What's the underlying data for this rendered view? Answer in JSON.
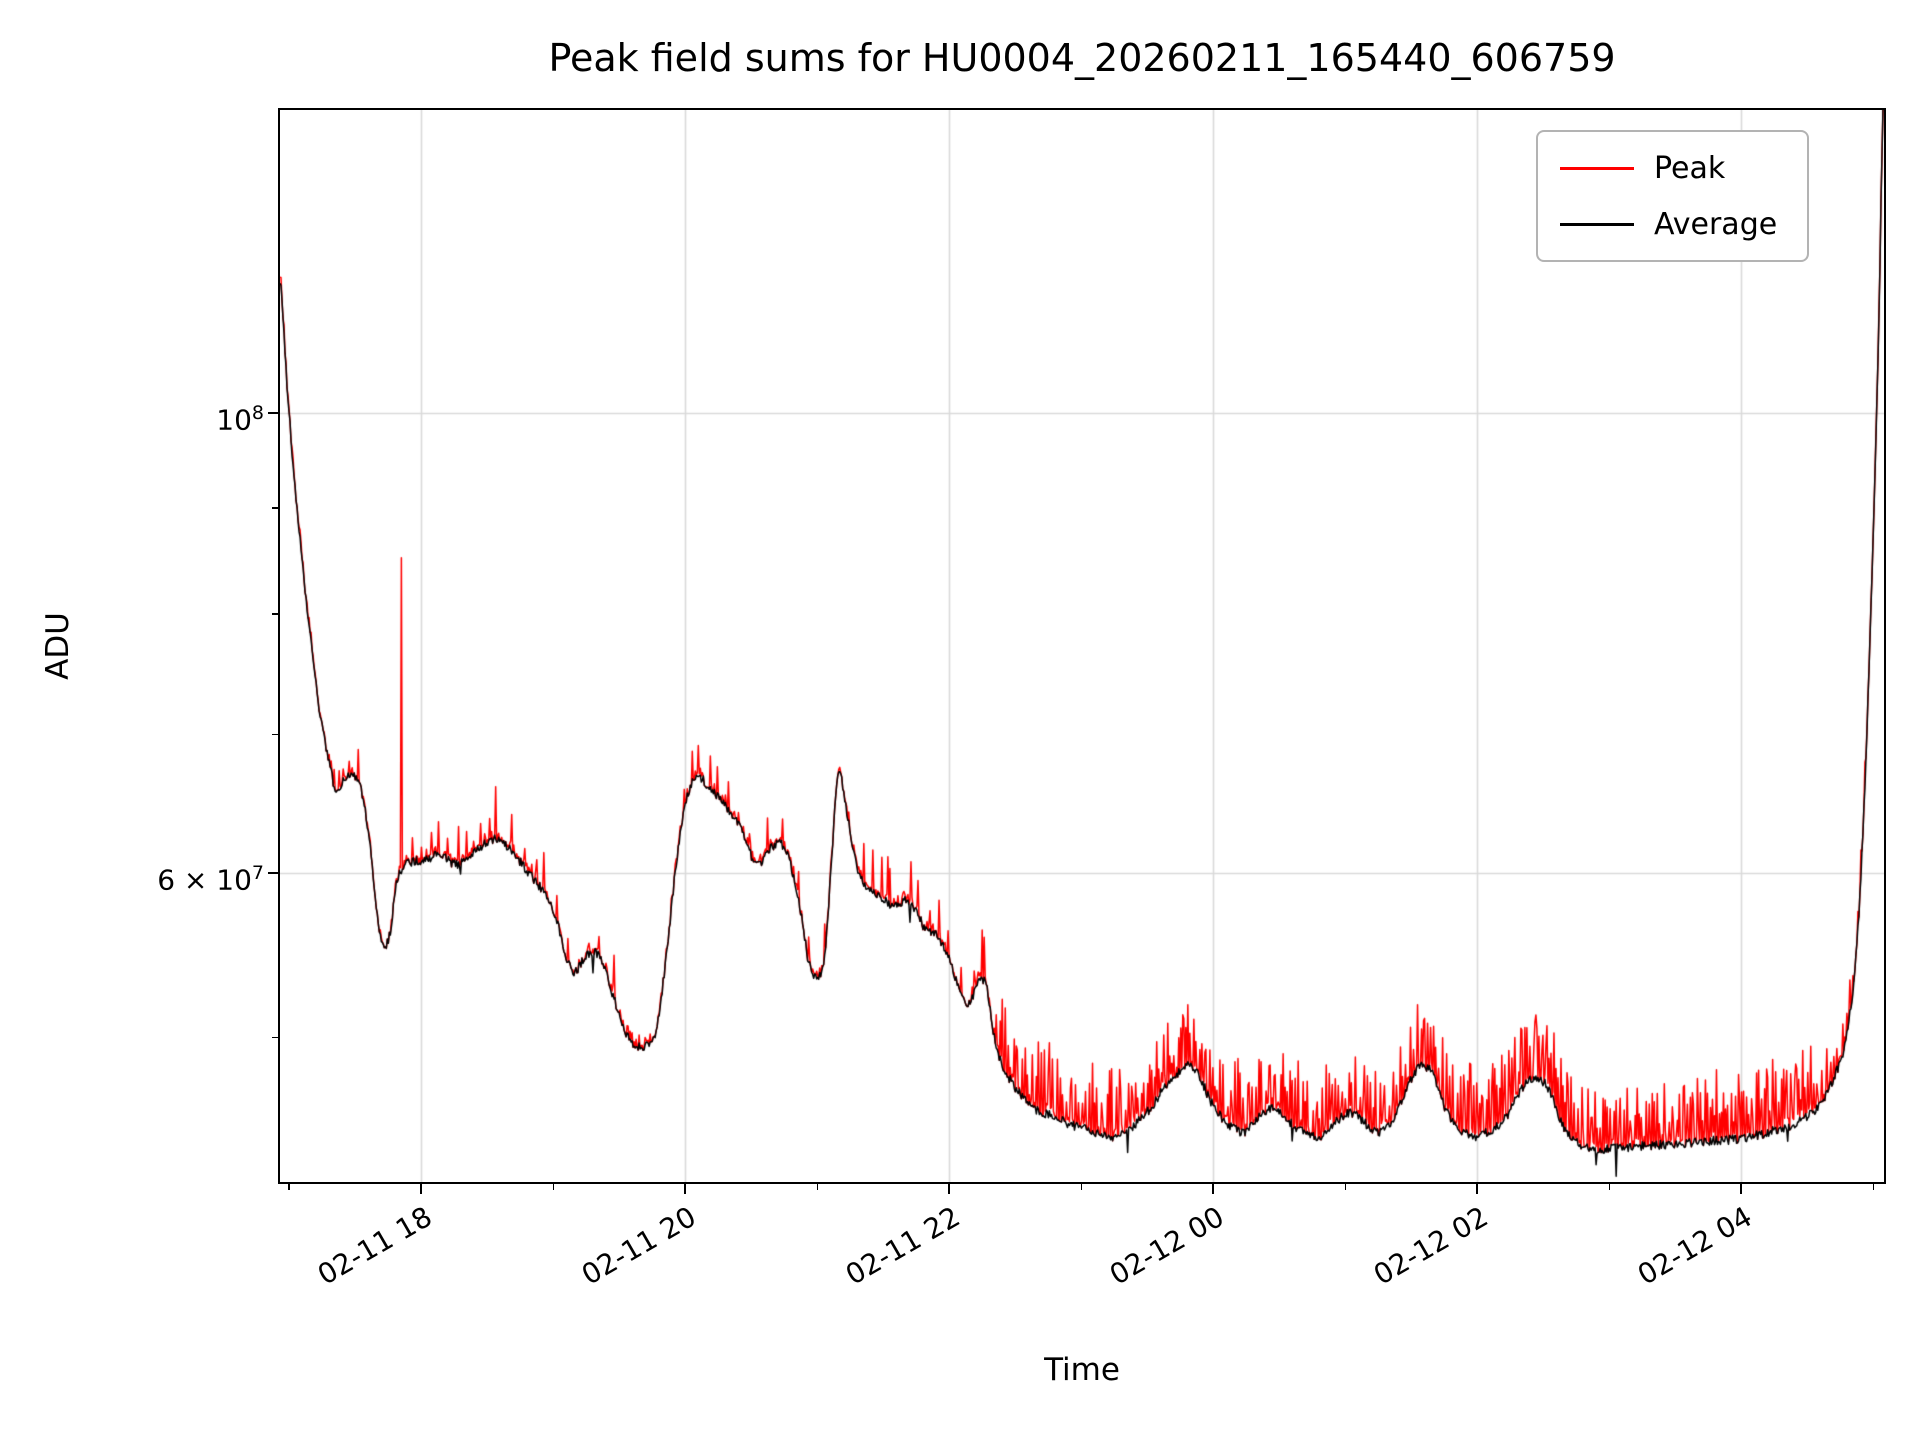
{
  "figure": {
    "background": "#ffffff"
  },
  "chart_data": {
    "type": "line",
    "title": "Peak field sums for HU0004_20260211_165440_606759",
    "xlabel": "Time",
    "ylabel": "ADU",
    "yscale": "log",
    "x_unit": "decimal hours since 2026-02-11 00:00 (values > 24 fall on 02-12)",
    "xlim": [
      16.93,
      29.08
    ],
    "ylim": [
      42600000,
      140000000
    ],
    "x_ticks": [
      {
        "value": 18,
        "label": "02-11 18"
      },
      {
        "value": 20,
        "label": "02-11 20"
      },
      {
        "value": 22,
        "label": "02-11 22"
      },
      {
        "value": 24,
        "label": "02-12 00"
      },
      {
        "value": 26,
        "label": "02-12 02"
      },
      {
        "value": 28,
        "label": "02-12 04"
      }
    ],
    "x_minor_ticks": [
      17,
      19,
      21,
      23,
      25,
      27,
      29
    ],
    "x_tick_rotation": 30,
    "y_ticks": [
      {
        "value": 100000000,
        "label": "10^8",
        "coef": "",
        "exp": "8"
      },
      {
        "value": 60000000,
        "label": "6 × 10^7",
        "coef": "6 × ",
        "exp": "7"
      }
    ],
    "y_minor_ticks": [
      50000000,
      70000000,
      80000000,
      90000000
    ],
    "grid_on": true,
    "grid_color": "#d9d9d9",
    "legend_position": "upper right",
    "series": [
      {
        "name": "Peak",
        "color": "#ff0000"
      },
      {
        "name": "Average",
        "color": "#000000"
      }
    ],
    "samples": 1600,
    "noise": {
      "amplitude": 0.005,
      "seed": 987654321
    },
    "peak_fringe": 0.02,
    "average_keypoints_1e7": [
      [
        16.93,
        11.6
      ],
      [
        16.98,
        10.4
      ],
      [
        17.03,
        9.4
      ],
      [
        17.1,
        8.45
      ],
      [
        17.17,
        7.7
      ],
      [
        17.24,
        7.12
      ],
      [
        17.3,
        6.8
      ],
      [
        17.36,
        6.56
      ],
      [
        17.42,
        6.66
      ],
      [
        17.48,
        6.7
      ],
      [
        17.54,
        6.6
      ],
      [
        17.6,
        6.28
      ],
      [
        17.66,
        5.78
      ],
      [
        17.71,
        5.55
      ],
      [
        17.76,
        5.6
      ],
      [
        17.81,
        5.92
      ],
      [
        17.87,
        6.06
      ],
      [
        17.95,
        6.08
      ],
      [
        18.05,
        6.1
      ],
      [
        18.15,
        6.13
      ],
      [
        18.25,
        6.06
      ],
      [
        18.35,
        6.1
      ],
      [
        18.45,
        6.18
      ],
      [
        18.55,
        6.23
      ],
      [
        18.65,
        6.18
      ],
      [
        18.75,
        6.08
      ],
      [
        18.85,
        5.96
      ],
      [
        18.95,
        5.86
      ],
      [
        19.02,
        5.72
      ],
      [
        19.08,
        5.52
      ],
      [
        19.15,
        5.38
      ],
      [
        19.22,
        5.44
      ],
      [
        19.3,
        5.5
      ],
      [
        19.38,
        5.42
      ],
      [
        19.46,
        5.22
      ],
      [
        19.54,
        5.04
      ],
      [
        19.62,
        4.96
      ],
      [
        19.7,
        4.95
      ],
      [
        19.78,
        5.05
      ],
      [
        19.86,
        5.5
      ],
      [
        19.94,
        6.12
      ],
      [
        20.02,
        6.55
      ],
      [
        20.1,
        6.68
      ],
      [
        20.18,
        6.6
      ],
      [
        20.26,
        6.52
      ],
      [
        20.34,
        6.42
      ],
      [
        20.42,
        6.3
      ],
      [
        20.5,
        6.12
      ],
      [
        20.56,
        6.05
      ],
      [
        20.64,
        6.16
      ],
      [
        20.72,
        6.2
      ],
      [
        20.8,
        6.05
      ],
      [
        20.88,
        5.72
      ],
      [
        20.94,
        5.42
      ],
      [
        21.0,
        5.35
      ],
      [
        21.06,
        5.5
      ],
      [
        21.12,
        6.25
      ],
      [
        21.16,
        6.72
      ],
      [
        21.21,
        6.5
      ],
      [
        21.27,
        6.15
      ],
      [
        21.34,
        5.95
      ],
      [
        21.42,
        5.88
      ],
      [
        21.5,
        5.84
      ],
      [
        21.58,
        5.78
      ],
      [
        21.66,
        5.82
      ],
      [
        21.74,
        5.76
      ],
      [
        21.82,
        5.64
      ],
      [
        21.9,
        5.6
      ],
      [
        21.98,
        5.5
      ],
      [
        22.04,
        5.36
      ],
      [
        22.1,
        5.24
      ],
      [
        22.16,
        5.2
      ],
      [
        22.22,
        5.32
      ],
      [
        22.28,
        5.3
      ],
      [
        22.34,
        5.0
      ],
      [
        22.4,
        4.85
      ],
      [
        22.48,
        4.75
      ],
      [
        22.56,
        4.68
      ],
      [
        22.64,
        4.62
      ],
      [
        22.72,
        4.6
      ],
      [
        22.82,
        4.57
      ],
      [
        22.92,
        4.54
      ],
      [
        23.02,
        4.52
      ],
      [
        23.12,
        4.5
      ],
      [
        23.22,
        4.48
      ],
      [
        23.32,
        4.5
      ],
      [
        23.42,
        4.55
      ],
      [
        23.52,
        4.62
      ],
      [
        23.62,
        4.72
      ],
      [
        23.72,
        4.8
      ],
      [
        23.82,
        4.85
      ],
      [
        23.9,
        4.78
      ],
      [
        23.98,
        4.66
      ],
      [
        24.06,
        4.58
      ],
      [
        24.14,
        4.53
      ],
      [
        24.22,
        4.5
      ],
      [
        24.3,
        4.55
      ],
      [
        24.38,
        4.6
      ],
      [
        24.46,
        4.62
      ],
      [
        24.54,
        4.58
      ],
      [
        24.62,
        4.53
      ],
      [
        24.7,
        4.5
      ],
      [
        24.78,
        4.48
      ],
      [
        24.86,
        4.5
      ],
      [
        24.94,
        4.56
      ],
      [
        25.02,
        4.6
      ],
      [
        25.1,
        4.58
      ],
      [
        25.18,
        4.53
      ],
      [
        25.26,
        4.5
      ],
      [
        25.34,
        4.55
      ],
      [
        25.42,
        4.65
      ],
      [
        25.5,
        4.78
      ],
      [
        25.58,
        4.85
      ],
      [
        25.66,
        4.8
      ],
      [
        25.74,
        4.65
      ],
      [
        25.82,
        4.55
      ],
      [
        25.9,
        4.5
      ],
      [
        25.98,
        4.48
      ],
      [
        26.06,
        4.5
      ],
      [
        26.14,
        4.53
      ],
      [
        26.22,
        4.58
      ],
      [
        26.3,
        4.68
      ],
      [
        26.38,
        4.76
      ],
      [
        26.46,
        4.78
      ],
      [
        26.54,
        4.72
      ],
      [
        26.62,
        4.58
      ],
      [
        26.7,
        4.48
      ],
      [
        26.78,
        4.44
      ],
      [
        26.86,
        4.42
      ],
      [
        27.0,
        4.42
      ],
      [
        27.2,
        4.43
      ],
      [
        27.4,
        4.44
      ],
      [
        27.6,
        4.45
      ],
      [
        27.8,
        4.46
      ],
      [
        28.0,
        4.47
      ],
      [
        28.2,
        4.5
      ],
      [
        28.35,
        4.53
      ],
      [
        28.5,
        4.58
      ],
      [
        28.6,
        4.65
      ],
      [
        28.7,
        4.78
      ],
      [
        28.78,
        4.95
      ],
      [
        28.85,
        5.3
      ],
      [
        28.9,
        5.9
      ],
      [
        28.95,
        7.0
      ],
      [
        29.0,
        8.8
      ],
      [
        29.04,
        11.0
      ],
      [
        29.08,
        14.5
      ]
    ],
    "peak_spike_clusters": [
      [
        17.3,
        17.6,
        4,
        0.015,
        0.04
      ],
      [
        17.9,
        18.45,
        8,
        0.015,
        0.05
      ],
      [
        18.5,
        19.5,
        10,
        0.015,
        0.05
      ],
      [
        19.9,
        20.5,
        6,
        0.015,
        0.035
      ],
      [
        20.6,
        21.1,
        5,
        0.015,
        0.04
      ],
      [
        21.3,
        22.3,
        12,
        0.02,
        0.06
      ],
      [
        22.35,
        23.3,
        40,
        0.02,
        0.08
      ],
      [
        23.3,
        24.0,
        35,
        0.02,
        0.07
      ],
      [
        24.0,
        25.0,
        45,
        0.02,
        0.08
      ],
      [
        25.0,
        25.9,
        40,
        0.02,
        0.07
      ],
      [
        25.9,
        26.7,
        50,
        0.025,
        0.085
      ],
      [
        26.7,
        27.6,
        45,
        0.02,
        0.075
      ],
      [
        27.6,
        28.55,
        55,
        0.02,
        0.08
      ],
      [
        28.55,
        28.95,
        14,
        0.015,
        0.05
      ]
    ],
    "notable_spikes": [
      [
        17.85,
        0.42
      ],
      [
        18.56,
        0.06
      ],
      [
        20.1,
        0.035
      ],
      [
        21.49,
        0.05
      ],
      [
        22.25,
        0.055
      ],
      [
        23.78,
        0.055
      ],
      [
        24.9,
        0.05
      ],
      [
        25.6,
        0.055
      ],
      [
        26.45,
        0.06
      ],
      [
        28.2,
        0.06
      ],
      [
        28.4,
        0.055
      ]
    ],
    "down_spikes": [
      [
        18.3,
        0.012
      ],
      [
        19.3,
        0.02
      ],
      [
        21.7,
        0.015
      ],
      [
        23.35,
        0.02
      ],
      [
        24.6,
        0.018
      ],
      [
        26.9,
        0.02
      ],
      [
        27.05,
        0.033
      ],
      [
        28.35,
        0.02
      ]
    ]
  }
}
